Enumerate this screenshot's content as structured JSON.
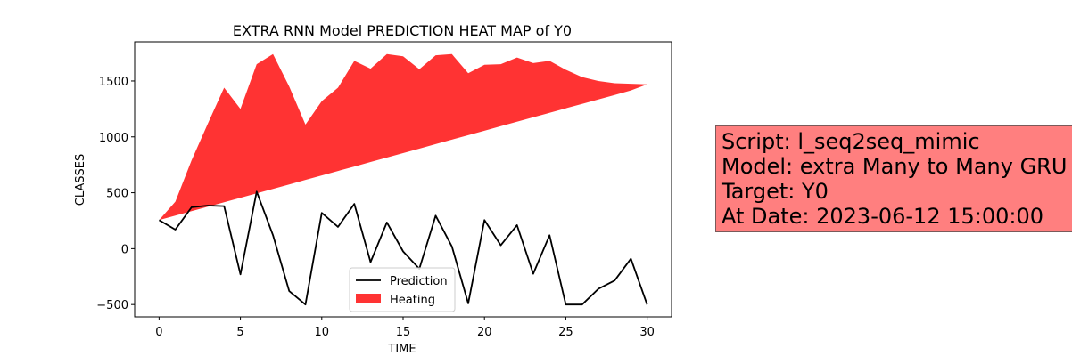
{
  "chart_data": {
    "type": "area",
    "title": "EXTRA RNN Model PREDICTION HEAT MAP of Y0",
    "xlabel": "TIME",
    "ylabel": "CLASSES",
    "xlim": [
      -1.5,
      31.5
    ],
    "ylim": [
      -610,
      1850
    ],
    "xticks": [
      0,
      5,
      10,
      15,
      20,
      25,
      30
    ],
    "yticks": [
      -500,
      0,
      500,
      1000,
      1500
    ],
    "legend_position": "lower center",
    "grid": false,
    "x": [
      0,
      1,
      2,
      3,
      4,
      5,
      6,
      7,
      8,
      9,
      10,
      11,
      12,
      13,
      14,
      15,
      16,
      17,
      18,
      19,
      20,
      21,
      22,
      23,
      24,
      25,
      26,
      27,
      28,
      29,
      30
    ],
    "series": [
      {
        "name": "Prediction",
        "kind": "line",
        "color": "#000000",
        "values": [
          255,
          170,
          370,
          385,
          380,
          -230,
          510,
          120,
          -380,
          -500,
          320,
          195,
          400,
          -120,
          235,
          -25,
          -180,
          295,
          20,
          -490,
          255,
          30,
          210,
          -225,
          120,
          -500,
          -500,
          -360,
          -285,
          -90,
          -500
        ]
      },
      {
        "name": "Heating",
        "kind": "band",
        "color": "#ff0000",
        "alpha": 0.8,
        "upper": [
          255,
          420,
          790,
          1120,
          1440,
          1250,
          1650,
          1740,
          1450,
          1110,
          1320,
          1440,
          1680,
          1610,
          1740,
          1720,
          1605,
          1730,
          1740,
          1570,
          1645,
          1650,
          1710,
          1660,
          1680,
          1600,
          1535,
          1500,
          1480,
          1475,
          1470
        ],
        "lower": [
          255,
          295,
          335,
          375,
          415,
          455,
          495,
          535,
          575,
          615,
          655,
          695,
          735,
          775,
          815,
          855,
          895,
          935,
          975,
          1015,
          1055,
          1095,
          1135,
          1175,
          1215,
          1255,
          1295,
          1335,
          1375,
          1415,
          1470
        ]
      }
    ]
  },
  "info_box": {
    "lines": [
      "Script: l_seq2seq_mimic",
      "Model: extra Many to Many GRU",
      "Target: Y0",
      "At Date: 2023-06-12 15:00:00"
    ],
    "background": "#ff7f7f"
  }
}
